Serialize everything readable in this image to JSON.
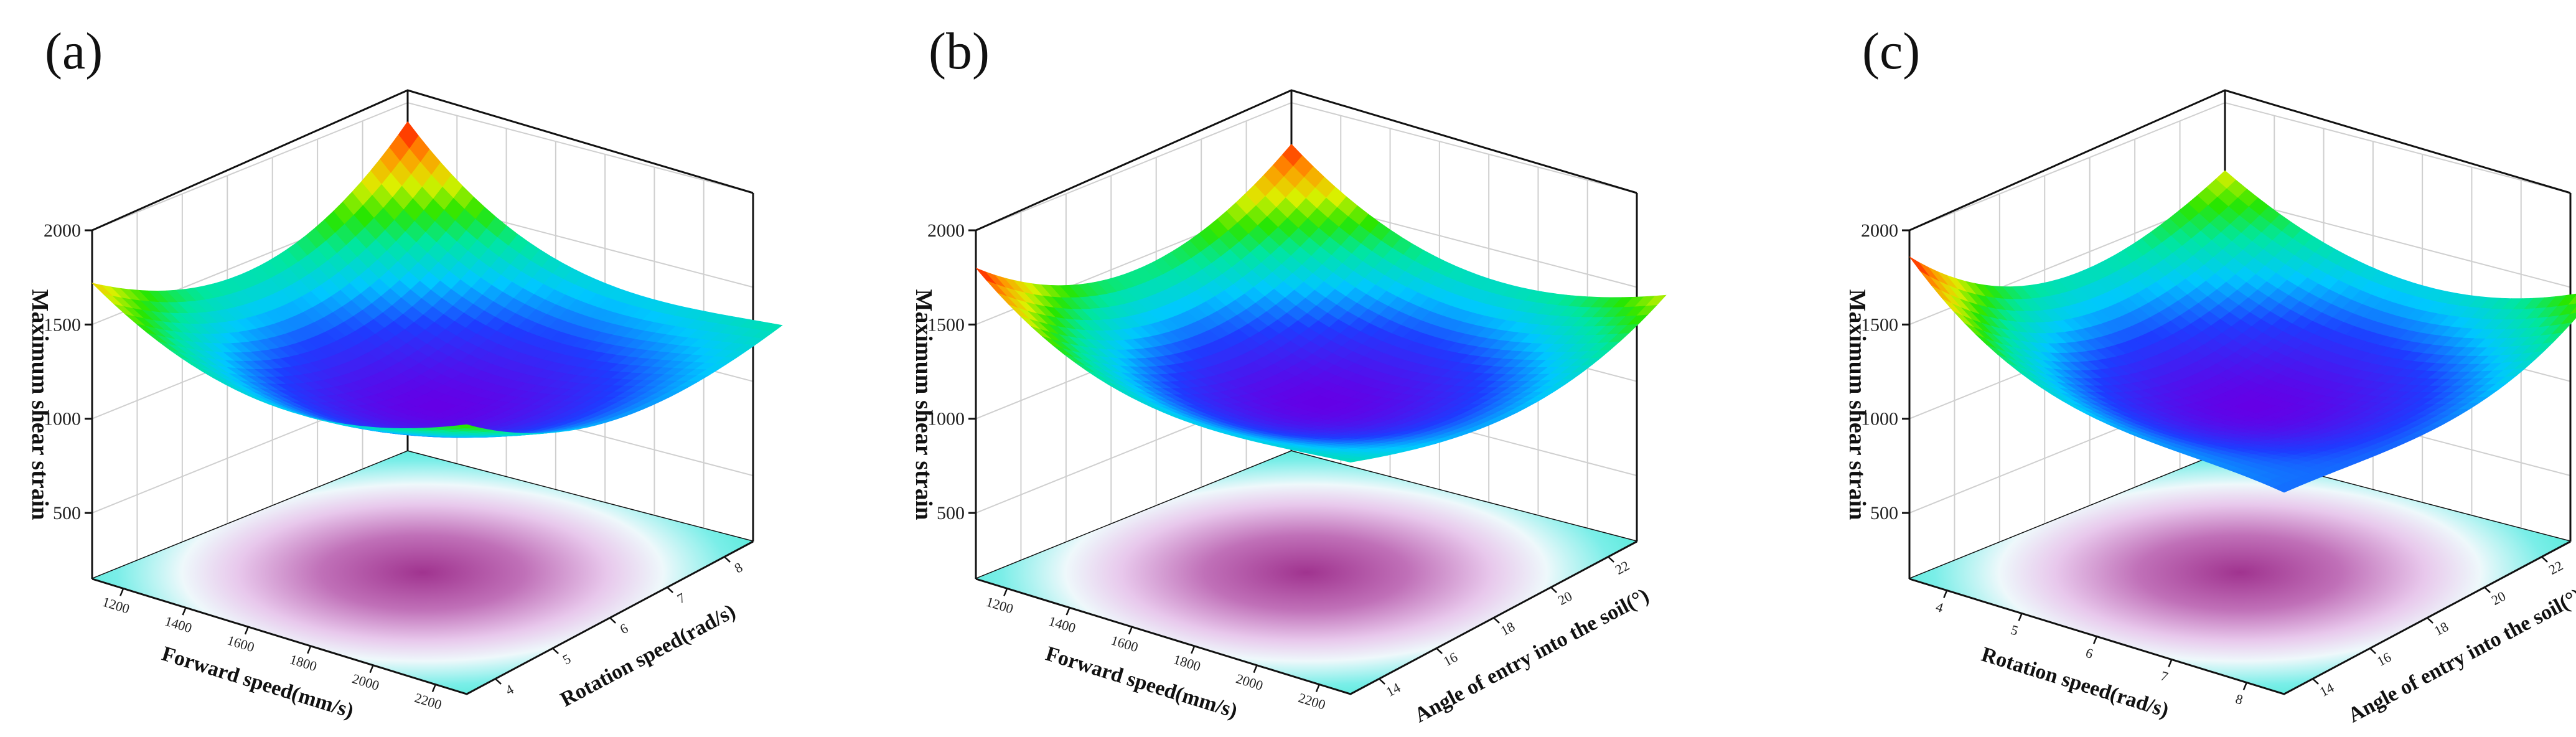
{
  "chart_data": [
    {
      "panel": "(a)",
      "type": "surface3d",
      "zlabel": "Maximum shear strain",
      "zticks": [
        "2000",
        "1500",
        "1000",
        "500"
      ],
      "zlim": [
        150,
        2000
      ],
      "x_label": "Forward speed(mm/s)",
      "x_ticks": [
        "1200",
        "1400",
        "1600",
        "1800",
        "2000",
        "2200"
      ],
      "y_label": "Rotation speed(rad/s)",
      "y_ticks": [
        "4",
        "5",
        "6",
        "7",
        "8"
      ],
      "surface": {
        "min": 1030,
        "corners": {
          "front": 1580,
          "left": 1720,
          "right": 1430,
          "back": 1900
        }
      },
      "contour_floor": true
    },
    {
      "panel": "(b)",
      "type": "surface3d",
      "zlabel": "Maximum shear strain",
      "zticks": [
        "2000",
        "1500",
        "1000",
        "500"
      ],
      "zlim": [
        150,
        2000
      ],
      "x_label": "Forward speed(mm/s)",
      "x_ticks": [
        "1200",
        "1400",
        "1600",
        "1800",
        "2000",
        "2200"
      ],
      "y_label": "Angle of entry into the soil(°)",
      "y_ticks": [
        "14",
        "16",
        "18",
        "20",
        "22"
      ],
      "surface": {
        "min": 1050,
        "corners": {
          "front": 1380,
          "left": 1800,
          "right": 1590,
          "back": 1780
        }
      },
      "contour_floor": true
    },
    {
      "panel": "(c)",
      "type": "surface3d",
      "zlabel": "Maximum shear strain",
      "zticks": [
        "2000",
        "1500",
        "1000",
        "500"
      ],
      "zlim": [
        150,
        2000
      ],
      "x_label": "Rotation speed(rad/s)",
      "x_ticks": [
        "4",
        "5",
        "6",
        "7",
        "8"
      ],
      "y_label": "Angle of entry into the soil(°)",
      "y_ticks": [
        "14",
        "16",
        "18",
        "20",
        "22"
      ],
      "surface": {
        "min": 1030,
        "corners": {
          "front": 1220,
          "left": 1860,
          "right": 1620,
          "back": 1640
        }
      },
      "contour_floor": true
    }
  ]
}
